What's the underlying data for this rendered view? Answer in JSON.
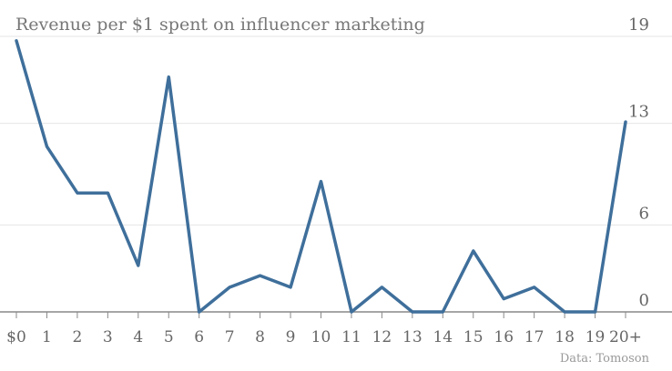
{
  "chart_data": {
    "type": "line",
    "title": "Revenue per $1 spent on influencer marketing",
    "source": "Data: Tomoson",
    "categories": [
      "$0",
      "1",
      "2",
      "3",
      "4",
      "5",
      "6",
      "7",
      "8",
      "9",
      "10",
      "11",
      "12",
      "13",
      "14",
      "15",
      "16",
      "17",
      "18",
      "19",
      "20+"
    ],
    "series": [
      {
        "values": [
          18.7,
          11.4,
          8.2,
          8.2,
          3.2,
          16.2,
          0,
          1.7,
          2.5,
          1.7,
          9.0,
          0,
          1.7,
          0,
          0,
          4.2,
          0.9,
          1.7,
          0,
          0,
          13.1
        ],
        "color": "#3f6f9b"
      }
    ],
    "yticks": [
      0,
      6,
      13,
      19
    ],
    "ylim": [
      0,
      19
    ],
    "grid": true
  }
}
